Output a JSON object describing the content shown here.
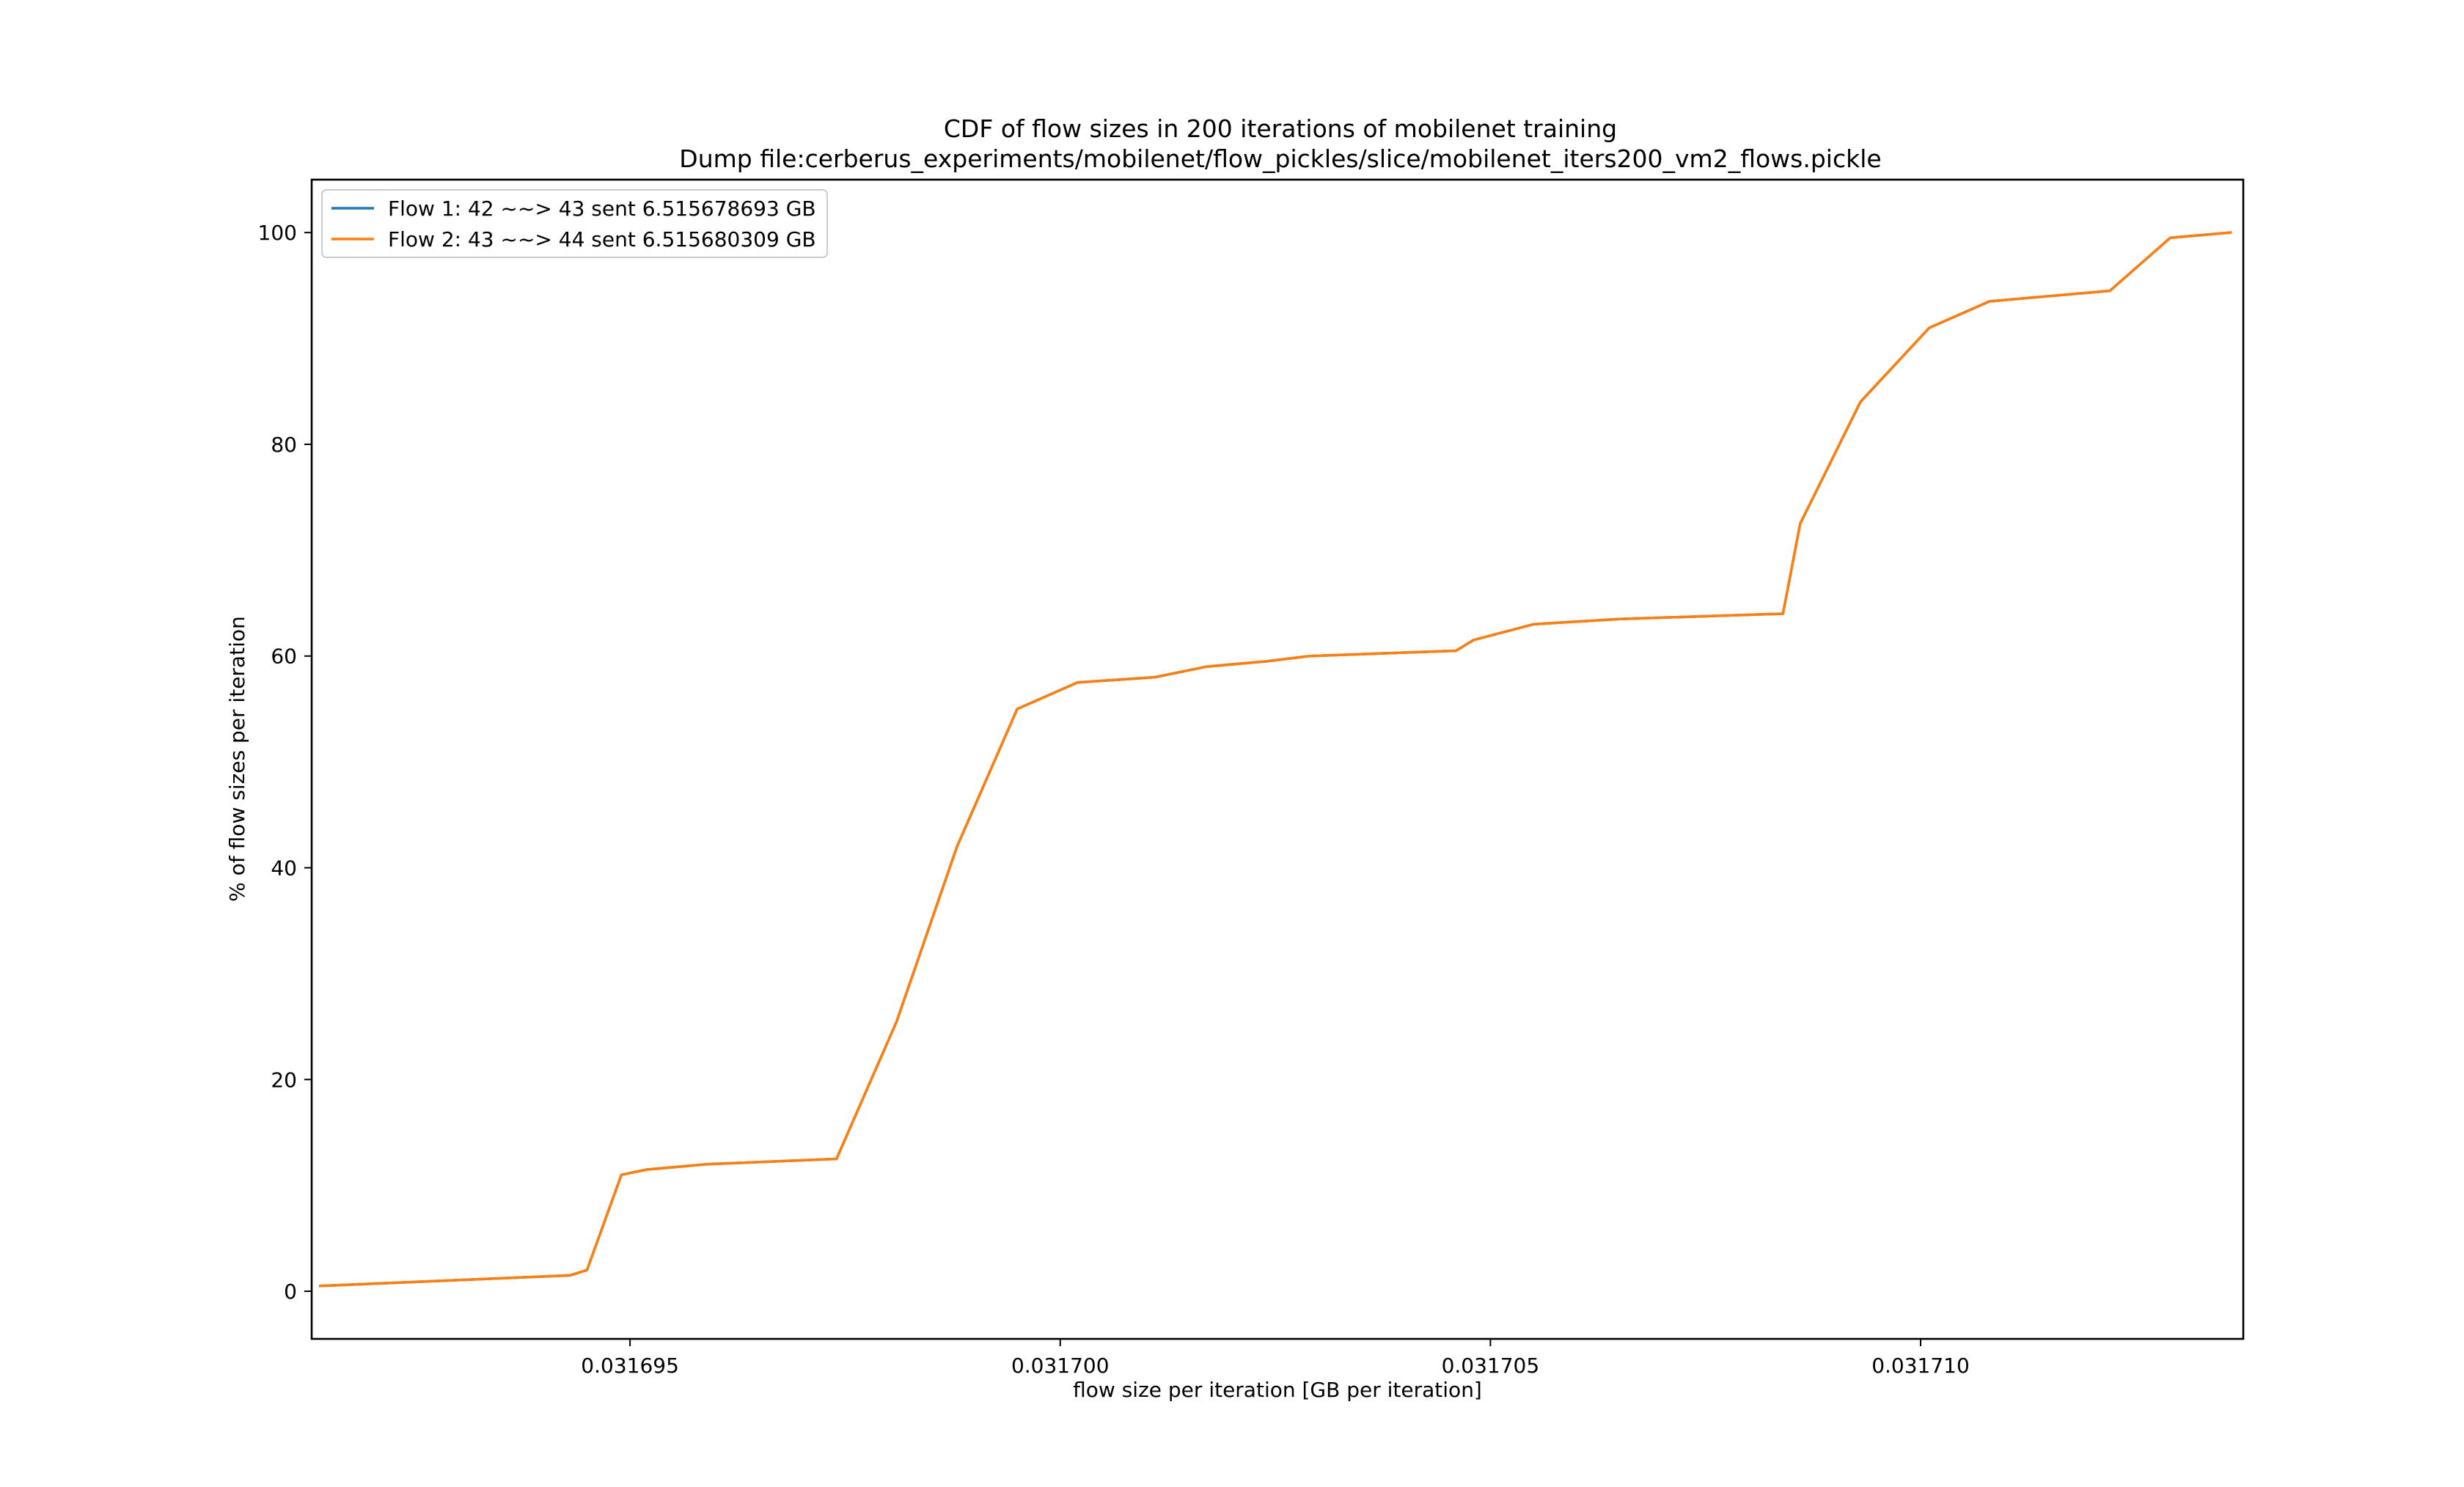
{
  "chart_data": {
    "type": "line",
    "title": "CDF of flow sizes in 200 iterations of mobilenet training",
    "subtitle": "Dump file:cerberus_experiments/mobilenet/flow_pickles/slice/mobilenet_iters200_vm2_flows.pickle",
    "xlabel": "flow size per iteration [GB per iteration]",
    "ylabel": "% of flow sizes per iteration",
    "xlim": [
      0.0316913,
      0.03171375
    ],
    "ylim": [
      -4.5,
      105
    ],
    "xticks": [
      0.031695,
      0.0317,
      0.031705,
      0.03171
    ],
    "xtick_labels": [
      "0.031695",
      "0.031700",
      "0.031705",
      "0.031710"
    ],
    "yticks": [
      0,
      20,
      40,
      60,
      80,
      100
    ],
    "ytick_labels": [
      "0",
      "20",
      "40",
      "60",
      "80",
      "100"
    ],
    "grid": false,
    "legend_position": "top-left",
    "series": [
      {
        "name": "Flow 1: 42 ~~> 43 sent 6.515678693 GB",
        "color": "#1f77b4",
        "x": [
          0.0316914,
          0.0316943,
          0.0316945,
          0.0316949,
          0.0316952,
          0.0316959,
          0.0316974,
          0.0316981,
          0.0316988,
          0.0316995,
          0.0317002,
          0.0317011,
          0.0317017,
          0.0317024,
          0.0317029,
          0.0317046,
          0.0317048,
          0.0317055,
          0.0317065,
          0.0317084,
          0.0317086,
          0.0317093,
          0.0317101,
          0.0317108,
          0.0317122,
          0.0317129,
          0.0317136
        ],
        "y": [
          0.5,
          1.5,
          2,
          11,
          11.5,
          12,
          12.5,
          25.5,
          42,
          55,
          57.5,
          58,
          59,
          59.5,
          60,
          60.5,
          61.5,
          63,
          63.5,
          64,
          72.5,
          84,
          91,
          93.5,
          94.5,
          99.5,
          100
        ]
      },
      {
        "name": "Flow 2: 43 ~~> 44 sent 6.515680309 GB",
        "color": "#ff7f0e",
        "x": [
          0.0316914,
          0.0316943,
          0.0316945,
          0.0316949,
          0.0316952,
          0.0316959,
          0.0316974,
          0.0316981,
          0.0316988,
          0.0316995,
          0.0317002,
          0.0317011,
          0.0317017,
          0.0317024,
          0.0317029,
          0.0317046,
          0.0317048,
          0.0317055,
          0.0317065,
          0.0317084,
          0.0317086,
          0.0317093,
          0.0317101,
          0.0317108,
          0.0317122,
          0.0317129,
          0.0317136
        ],
        "y": [
          0.5,
          1.5,
          2,
          11,
          11.5,
          12,
          12.5,
          25.5,
          42,
          55,
          57.5,
          58,
          59,
          59.5,
          60,
          60.5,
          61.5,
          63,
          63.5,
          64,
          72.5,
          84,
          91,
          93.5,
          94.5,
          99.5,
          100
        ]
      }
    ]
  }
}
